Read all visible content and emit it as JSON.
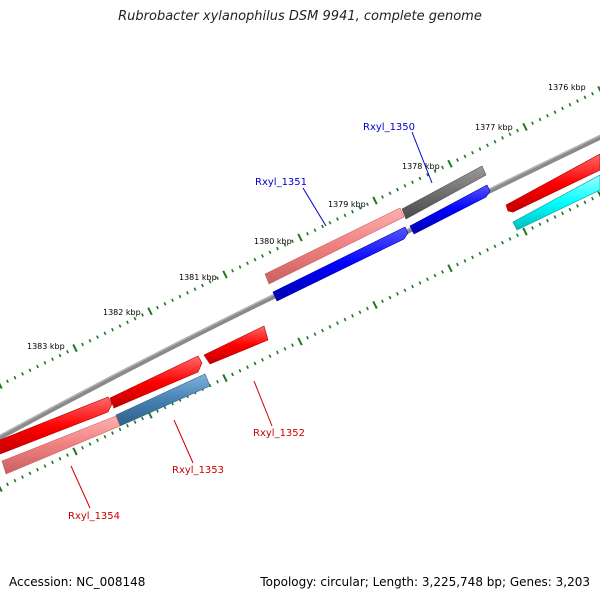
{
  "title": "Rubrobacter xylanophilus DSM 9941, complete genome",
  "footer": {
    "accession": "Accession: NC_008148",
    "stats": "Topology: circular; Length: 3,225,748 bp; Genes: 3,203"
  },
  "colors": {
    "backbone": "#8a8a8a",
    "tick": "#1f7a1f",
    "forward_red": "#ff0000",
    "forward_pink": "#f08080",
    "forward_gray": "#707070",
    "reverse_blue": "#0000ff",
    "reverse_steel": "#4682b4",
    "cyan": "#00ffff",
    "label_blue": "#0000cc",
    "label_red": "#cc0000"
  },
  "ticks": [
    {
      "label": "1376 kbp"
    },
    {
      "label": "1377 kbp"
    },
    {
      "label": "1378 kbp"
    },
    {
      "label": "1379 kbp"
    },
    {
      "label": "1380 kbp"
    },
    {
      "label": "1381 kbp"
    },
    {
      "label": "1382 kbp"
    },
    {
      "label": "1383 kbp"
    }
  ],
  "genes": [
    {
      "name": "Rxyl_1350",
      "color": "#707070"
    },
    {
      "name": "Rxyl_1351",
      "color": "#f08080"
    },
    {
      "name": "Rxyl_1352",
      "color": "#ff0000"
    },
    {
      "name": "Rxyl_1353",
      "color": "#4682b4"
    },
    {
      "name": "Rxyl_1354",
      "color": "#f08080"
    }
  ]
}
